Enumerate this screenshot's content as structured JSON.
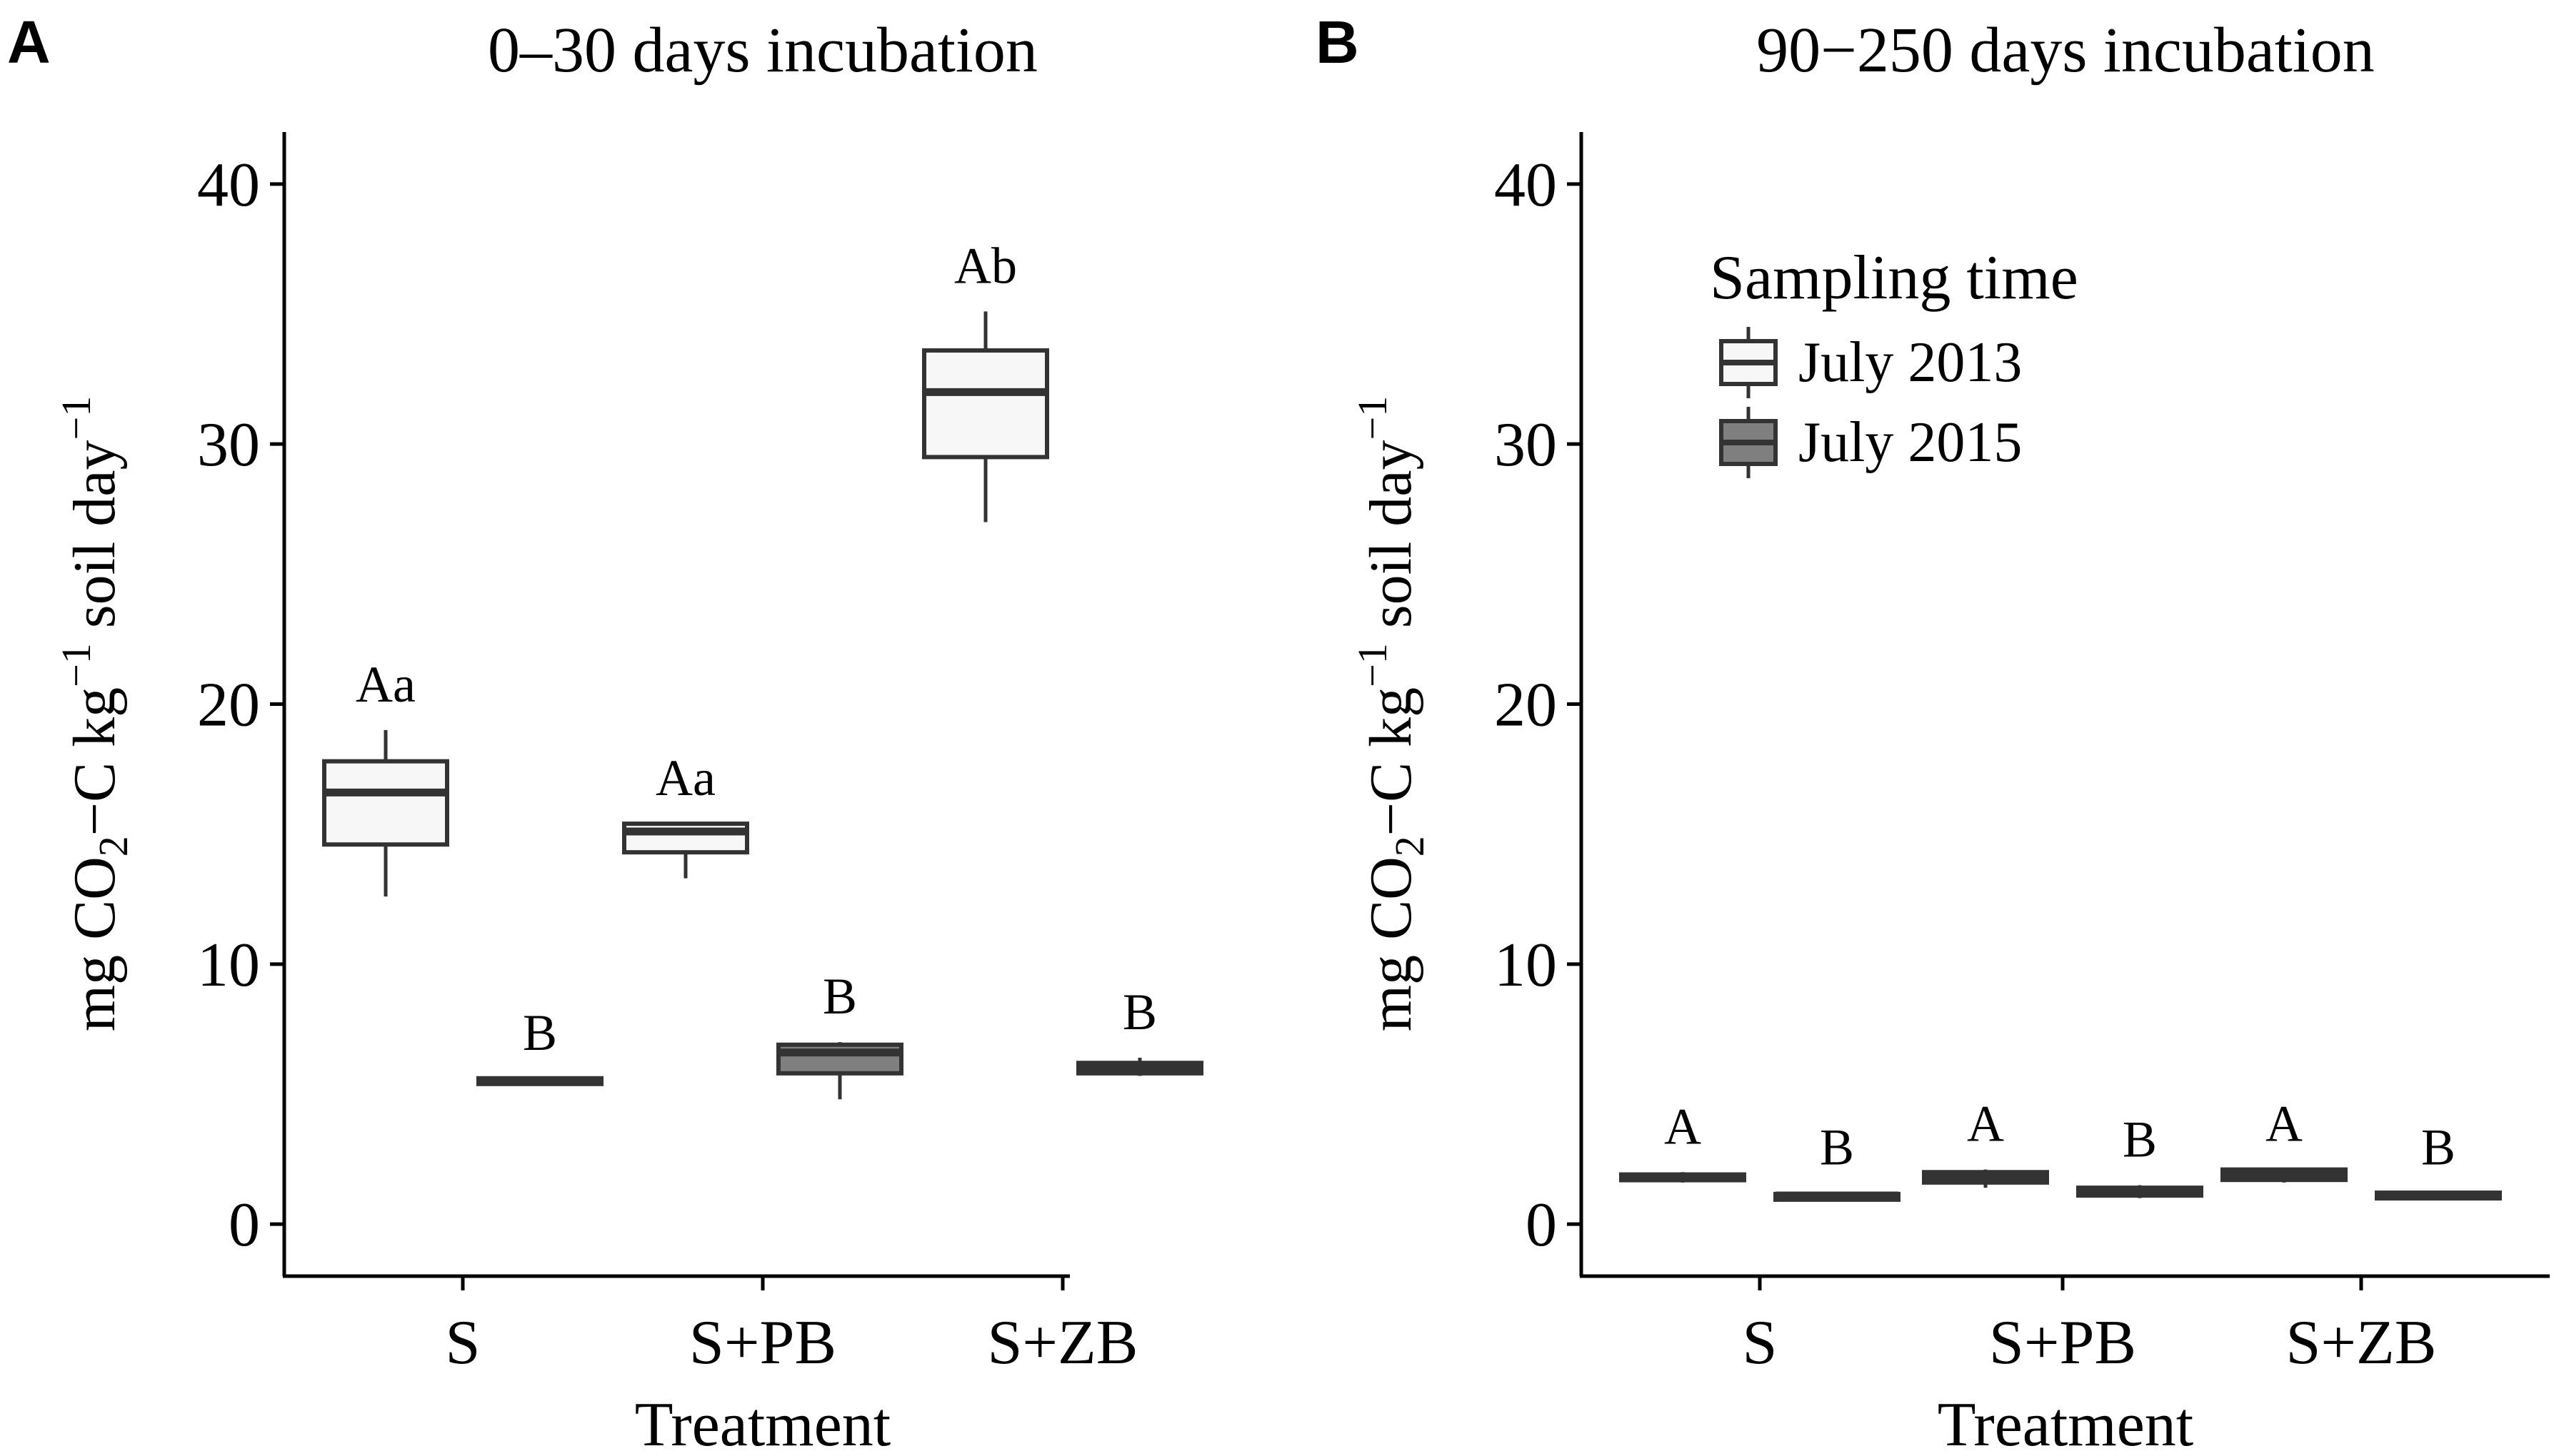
{
  "figure": {
    "y_axis_label": {
      "prefix": "mg CO",
      "sub": "2",
      "middle": "−C kg",
      "sup1": "−1",
      "soil": " soil day",
      "sup2": "−1"
    },
    "x_axis_label": "Treatment",
    "colors": {
      "july_2013_fill": "#f7f7f7",
      "july_2015_fill": "#7f7f7f",
      "stroke": "#333333",
      "axis": "#000000"
    }
  },
  "legend": {
    "title": "Sampling time",
    "items": [
      {
        "label": "July 2013",
        "color": "#f7f7f7"
      },
      {
        "label": "July 2015",
        "color": "#7f7f7f"
      }
    ]
  },
  "chart_data": [
    {
      "type": "box",
      "panel_letter": "A",
      "title": "0–30 days incubation",
      "xlabel": "Treatment",
      "ylabel": "mg CO2−C kg−1 soil day−1",
      "ylim": [
        -2,
        42
      ],
      "yticks": [
        0,
        10,
        20,
        30,
        40
      ],
      "categories": [
        "S",
        "S+PB",
        "S+ZB"
      ],
      "series": [
        {
          "name": "July 2013",
          "boxes": [
            {
              "category": "S",
              "min": 12.6,
              "q1": 14.6,
              "median": 16.6,
              "q3": 17.8,
              "max": 19.0,
              "label": "Aa"
            },
            {
              "category": "S+PB",
              "min": 13.3,
              "q1": 14.3,
              "median": 15.1,
              "q3": 15.4,
              "max": 15.4,
              "label": "Aa"
            },
            {
              "category": "S+ZB",
              "min": 27.0,
              "q1": 29.5,
              "median": 32.0,
              "q3": 33.6,
              "max": 35.1,
              "label": "Ab"
            }
          ]
        },
        {
          "name": "July 2015",
          "boxes": [
            {
              "category": "S",
              "min": 5.4,
              "q1": 5.4,
              "median": 5.5,
              "q3": 5.6,
              "max": 5.6,
              "label": "B"
            },
            {
              "category": "S+PB",
              "min": 4.8,
              "q1": 5.8,
              "median": 6.6,
              "q3": 6.9,
              "max": 7.0,
              "label": "B"
            },
            {
              "category": "S+ZB",
              "min": 5.7,
              "q1": 5.8,
              "median": 6.0,
              "q3": 6.2,
              "max": 6.4,
              "label": "B"
            }
          ]
        }
      ]
    },
    {
      "type": "box",
      "panel_letter": "B",
      "title": "90−250 days incubation",
      "xlabel": "Treatment",
      "ylabel": "mg CO2−C kg−1 soil day−1",
      "ylim": [
        -2,
        42
      ],
      "yticks": [
        0,
        10,
        20,
        30,
        40
      ],
      "categories": [
        "S",
        "S+PB",
        "S+ZB"
      ],
      "series": [
        {
          "name": "July 2013",
          "boxes": [
            {
              "category": "S",
              "min": 1.6,
              "q1": 1.7,
              "median": 1.8,
              "q3": 1.9,
              "max": 2.0,
              "label": "A"
            },
            {
              "category": "S+PB",
              "min": 1.4,
              "q1": 1.6,
              "median": 1.8,
              "q3": 2.0,
              "max": 2.1,
              "label": "A"
            },
            {
              "category": "S+ZB",
              "min": 1.6,
              "q1": 1.7,
              "median": 1.9,
              "q3": 2.1,
              "max": 2.1,
              "label": "A"
            }
          ]
        },
        {
          "name": "July 2015",
          "boxes": [
            {
              "category": "S",
              "min": 1.0,
              "q1": 1.0,
              "median": 1.1,
              "q3": 1.1,
              "max": 1.2,
              "label": "B"
            },
            {
              "category": "S+PB",
              "min": 1.0,
              "q1": 1.1,
              "median": 1.3,
              "q3": 1.4,
              "max": 1.5,
              "label": "B"
            },
            {
              "category": "S+ZB",
              "min": 1.0,
              "q1": 1.0,
              "median": 1.1,
              "q3": 1.2,
              "max": 1.2,
              "label": "B"
            }
          ]
        }
      ]
    }
  ]
}
